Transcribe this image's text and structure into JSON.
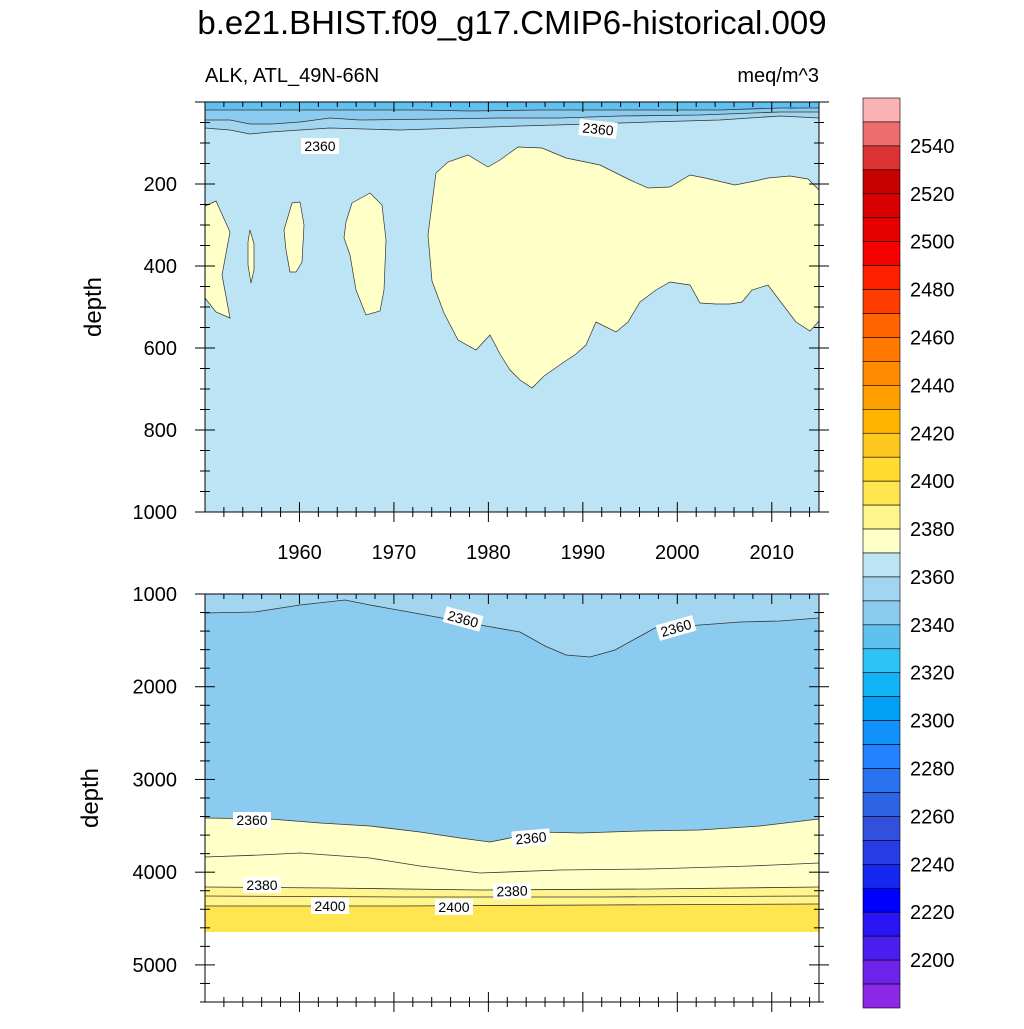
{
  "title": "b.e21.BHIST.f09_g17.CMIP6-historical.009",
  "subtitle_left": "ALK, ATL_49N-66N",
  "subtitle_right": "meq/m^3",
  "chart_data": [
    {
      "type": "contour",
      "panel": "upper",
      "ylabel": "depth",
      "xlim": [
        1950,
        2015
      ],
      "ylim": [
        1000,
        0
      ],
      "x_ticks": [
        "1960",
        "1970",
        "1980",
        "1990",
        "2000",
        "2010"
      ],
      "y_ticks": [
        "200",
        "400",
        "600",
        "800",
        "1000"
      ],
      "contour_labels": [
        "2360",
        "2360"
      ],
      "fill_levels_present": [
        "2330-2340",
        "2340-2350",
        "2350-2360",
        "2360-2370",
        "2370-2380"
      ]
    },
    {
      "type": "contour",
      "panel": "lower",
      "ylabel": "depth",
      "xlim": [
        1950,
        2015
      ],
      "ylim": [
        5400,
        1000
      ],
      "y_ticks": [
        "1000",
        "2000",
        "3000",
        "4000",
        "5000"
      ],
      "contour_labels": [
        "2360",
        "2360",
        "2360",
        "2360",
        "2380",
        "2380",
        "2400",
        "2400"
      ],
      "data_bottom_depth": 4620,
      "fill_levels_present": [
        "2350-2360",
        "2360-2370",
        "2370-2380",
        "2380-2390",
        "2390-2400",
        "2400-2410"
      ]
    }
  ],
  "colorbar": {
    "labels": [
      "2540",
      "2520",
      "2500",
      "2480",
      "2460",
      "2440",
      "2420",
      "2400",
      "2380",
      "2360",
      "2340",
      "2320",
      "2300",
      "2280",
      "2260",
      "2240",
      "2220",
      "2200"
    ],
    "colors": [
      "#fbb2b3",
      "#ee6e6f",
      "#dc3233",
      "#c80000",
      "#d80000",
      "#e60000",
      "#f80000",
      "#ff2000",
      "#ff3c00",
      "#ff6400",
      "#ff7800",
      "#ff8c00",
      "#ffa000",
      "#ffb400",
      "#ffc81e",
      "#ffdc32",
      "#ffe650",
      "#fff58c",
      "#ffffc8",
      "#bce4f4",
      "#a2d6f0",
      "#8ccbf0",
      "#5fc1f0",
      "#2dc3f5",
      "#10b4f5",
      "#00a0f5",
      "#1192fa",
      "#2183ff",
      "#2873f0",
      "#2d64e6",
      "#3250dc",
      "#283ce6",
      "#1428f0",
      "#0000ff",
      "#2814f5",
      "#4b1ef0",
      "#6e23eb",
      "#8c28e6"
    ]
  }
}
